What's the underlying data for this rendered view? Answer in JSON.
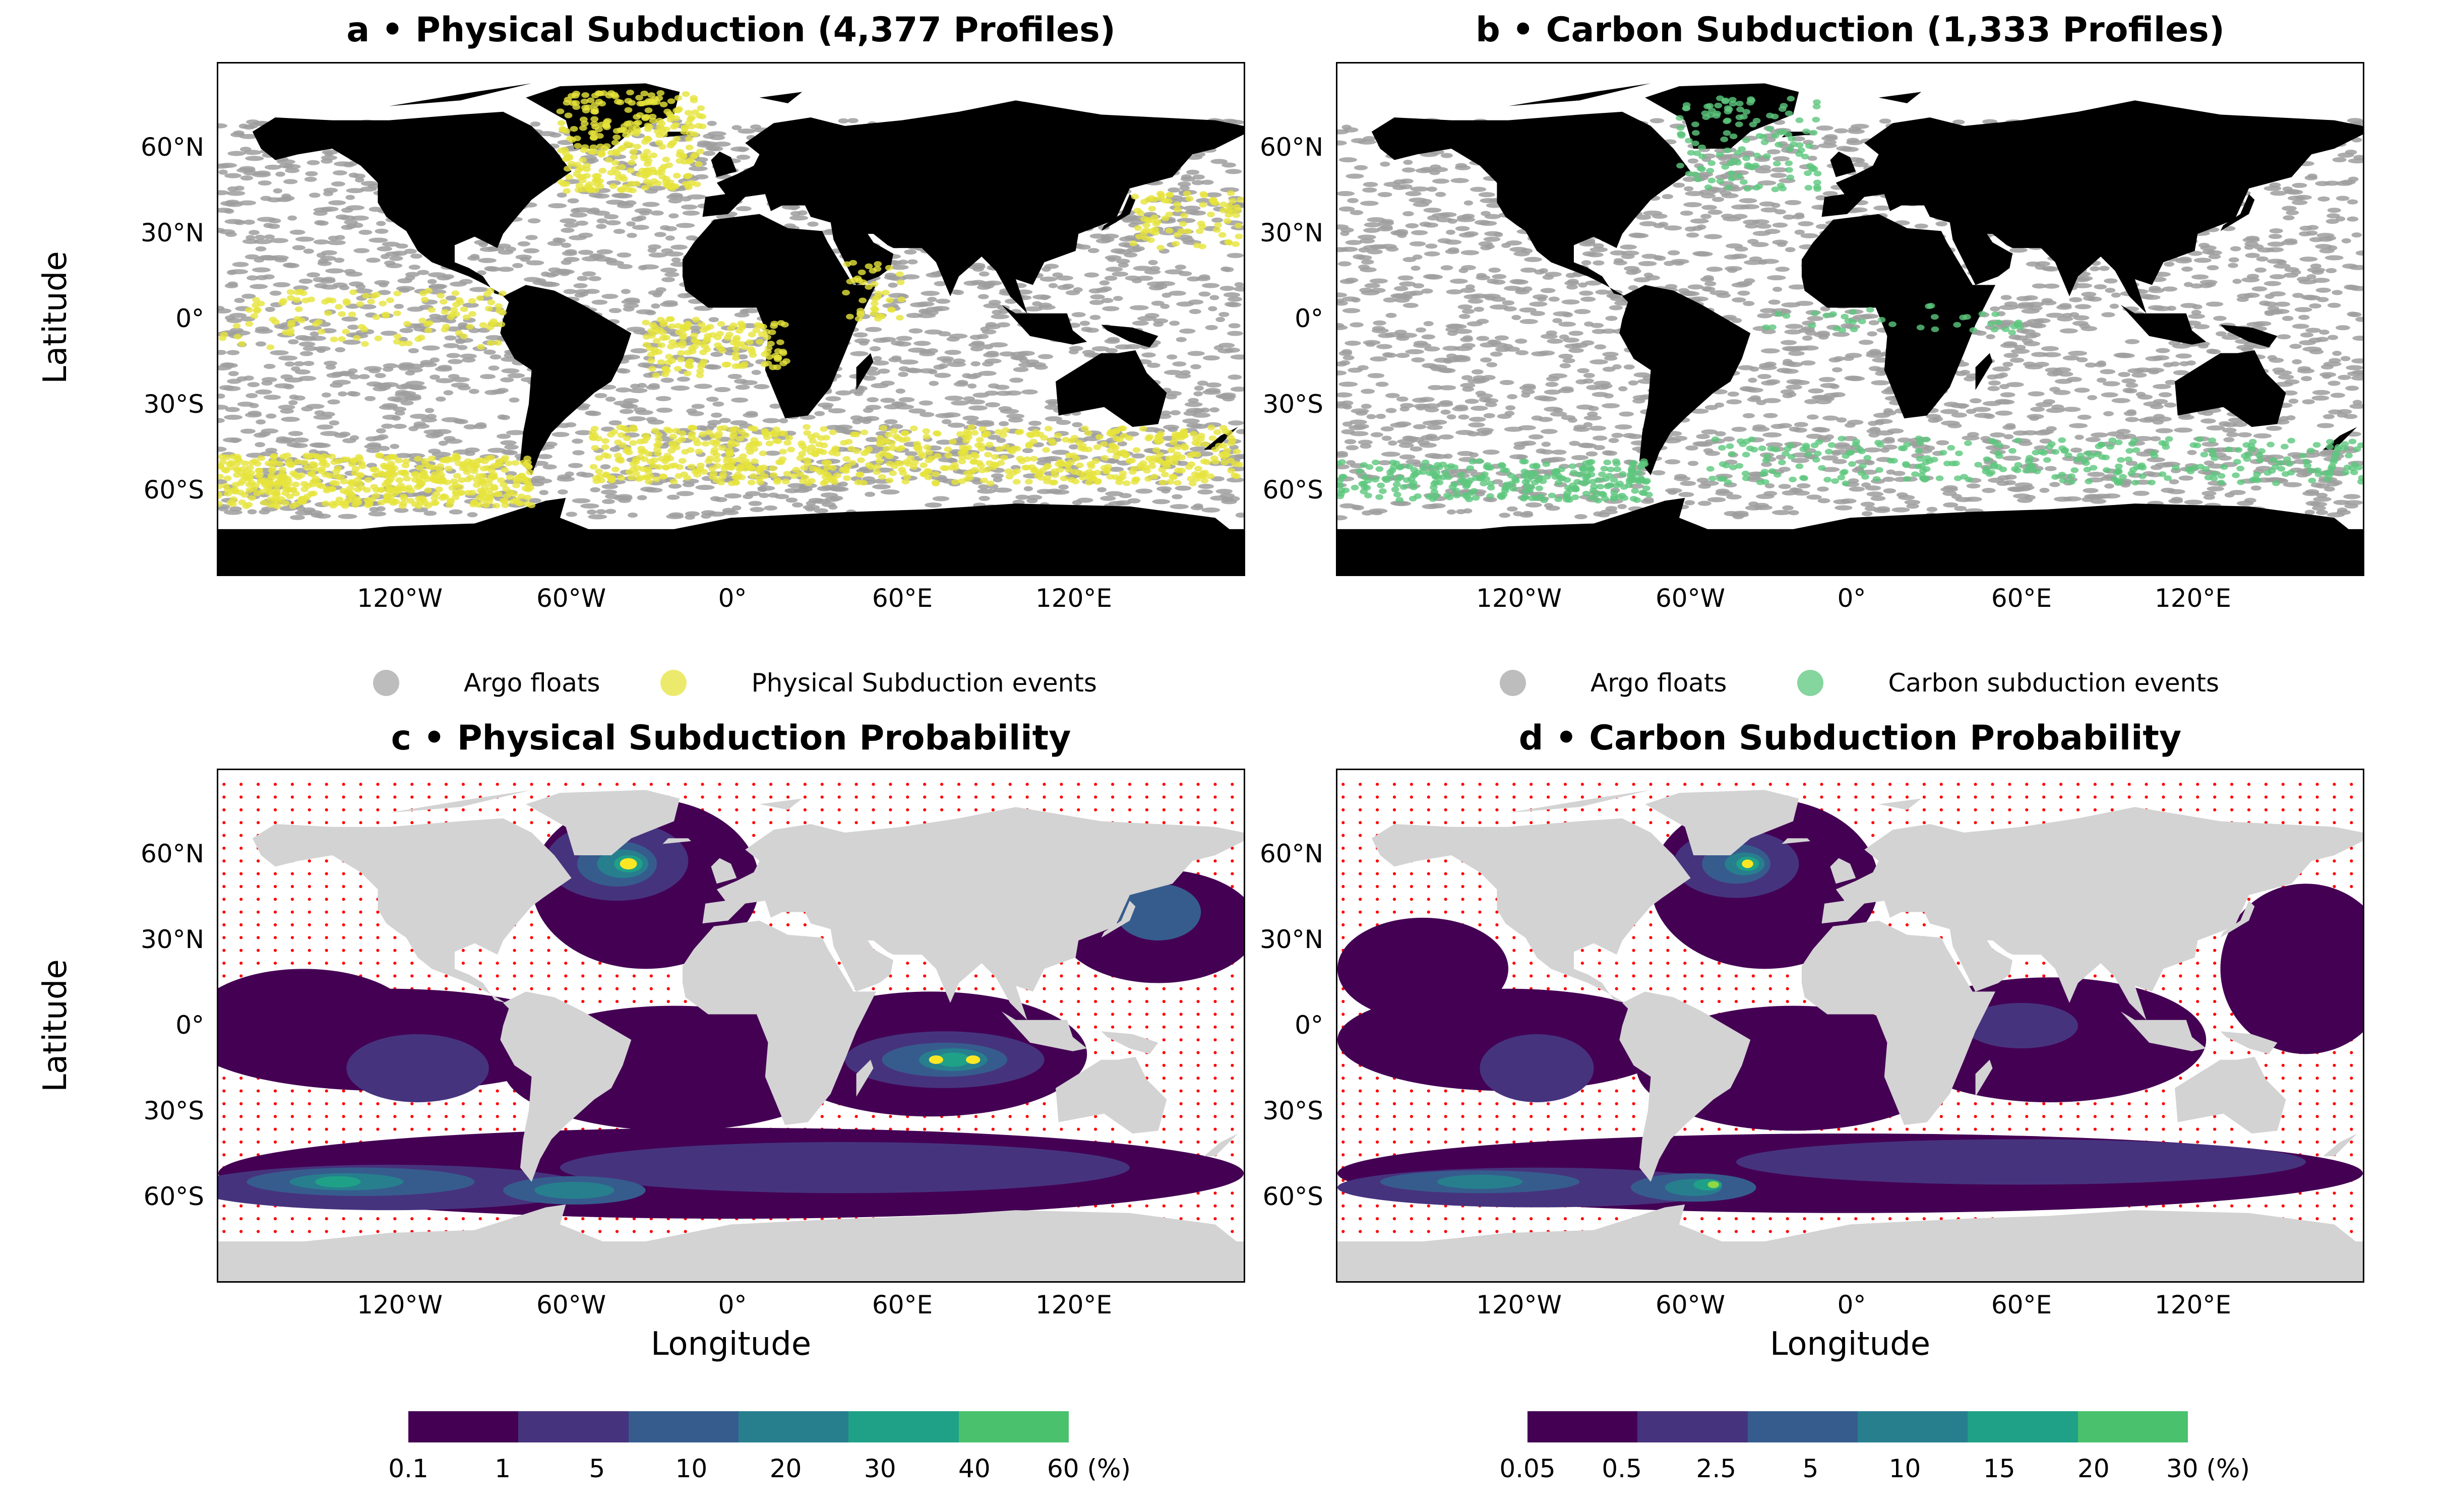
{
  "panels": {
    "a": {
      "title": "a • Physical Subduction (4,377 Profiles)"
    },
    "b": {
      "title": "b • Carbon Subduction (1,333 Profiles)"
    },
    "c": {
      "title": "c • Physical Subduction Probability"
    },
    "d": {
      "title": "d • Carbon Subduction Probability"
    }
  },
  "axes": {
    "ylabel": "Latitude",
    "xlabel": "Longitude",
    "lat_ticks": [
      "60°N",
      "30°N",
      "0°",
      "30°S",
      "60°S"
    ],
    "lon_ticks": [
      "120°W",
      "60°W",
      "0°",
      "60°E",
      "120°E"
    ]
  },
  "legends": {
    "top_left": {
      "argo_label": "Argo floats",
      "event_label": "Physical Subduction events",
      "argo_color": "#bdbdbd",
      "event_color": "#e6e33b"
    },
    "top_right": {
      "argo_label": "Argo floats",
      "event_label": "Carbon subduction events",
      "argo_color": "#bdbdbd",
      "event_color": "#5cc77d"
    }
  },
  "colorbars": {
    "physical": {
      "ticks": [
        "0.1",
        "1",
        "5",
        "10",
        "20",
        "30",
        "40",
        "60 (%)"
      ],
      "colors": [
        "#440154",
        "#46337e",
        "#365c8d",
        "#277f8e",
        "#1fa187",
        "#4ac16d",
        "#a0da39",
        "#fde725"
      ]
    },
    "carbon": {
      "ticks": [
        "0.05",
        "0.5",
        "2.5",
        "5",
        "10",
        "15",
        "20",
        "30 (%)"
      ],
      "colors": [
        "#440154",
        "#46337e",
        "#365c8d",
        "#277f8e",
        "#1fa187",
        "#4ac16d",
        "#a0da39",
        "#fde725"
      ]
    }
  },
  "chart_data": [
    {
      "type": "scatter",
      "title": "a • Physical Subduction (4,377 Profiles)",
      "ylabel": "Latitude",
      "series": [
        {
          "name": "Argo floats"
        },
        {
          "name": "Physical Subduction events"
        }
      ],
      "xlim": [
        -180,
        180
      ],
      "ylim": [
        -90,
        90
      ]
    },
    {
      "type": "scatter",
      "title": "b • Carbon Subduction (1,333 Profiles)",
      "series": [
        {
          "name": "Argo floats"
        },
        {
          "name": "Carbon subduction events"
        }
      ],
      "xlim": [
        -180,
        180
      ],
      "ylim": [
        -90,
        90
      ]
    },
    {
      "type": "heatmap",
      "title": "c • Physical Subduction Probability",
      "xlabel": "Longitude",
      "ylabel": "Latitude",
      "levels": [
        0.1,
        1,
        5,
        10,
        20,
        30,
        40,
        60
      ],
      "xlim": [
        -180,
        180
      ],
      "ylim": [
        -90,
        90
      ]
    },
    {
      "type": "heatmap",
      "title": "d • Carbon Subduction Probability",
      "xlabel": "Longitude",
      "levels": [
        0.05,
        0.5,
        2.5,
        5,
        10,
        15,
        20,
        30
      ],
      "xlim": [
        -180,
        180
      ],
      "ylim": [
        -90,
        90
      ]
    }
  ]
}
